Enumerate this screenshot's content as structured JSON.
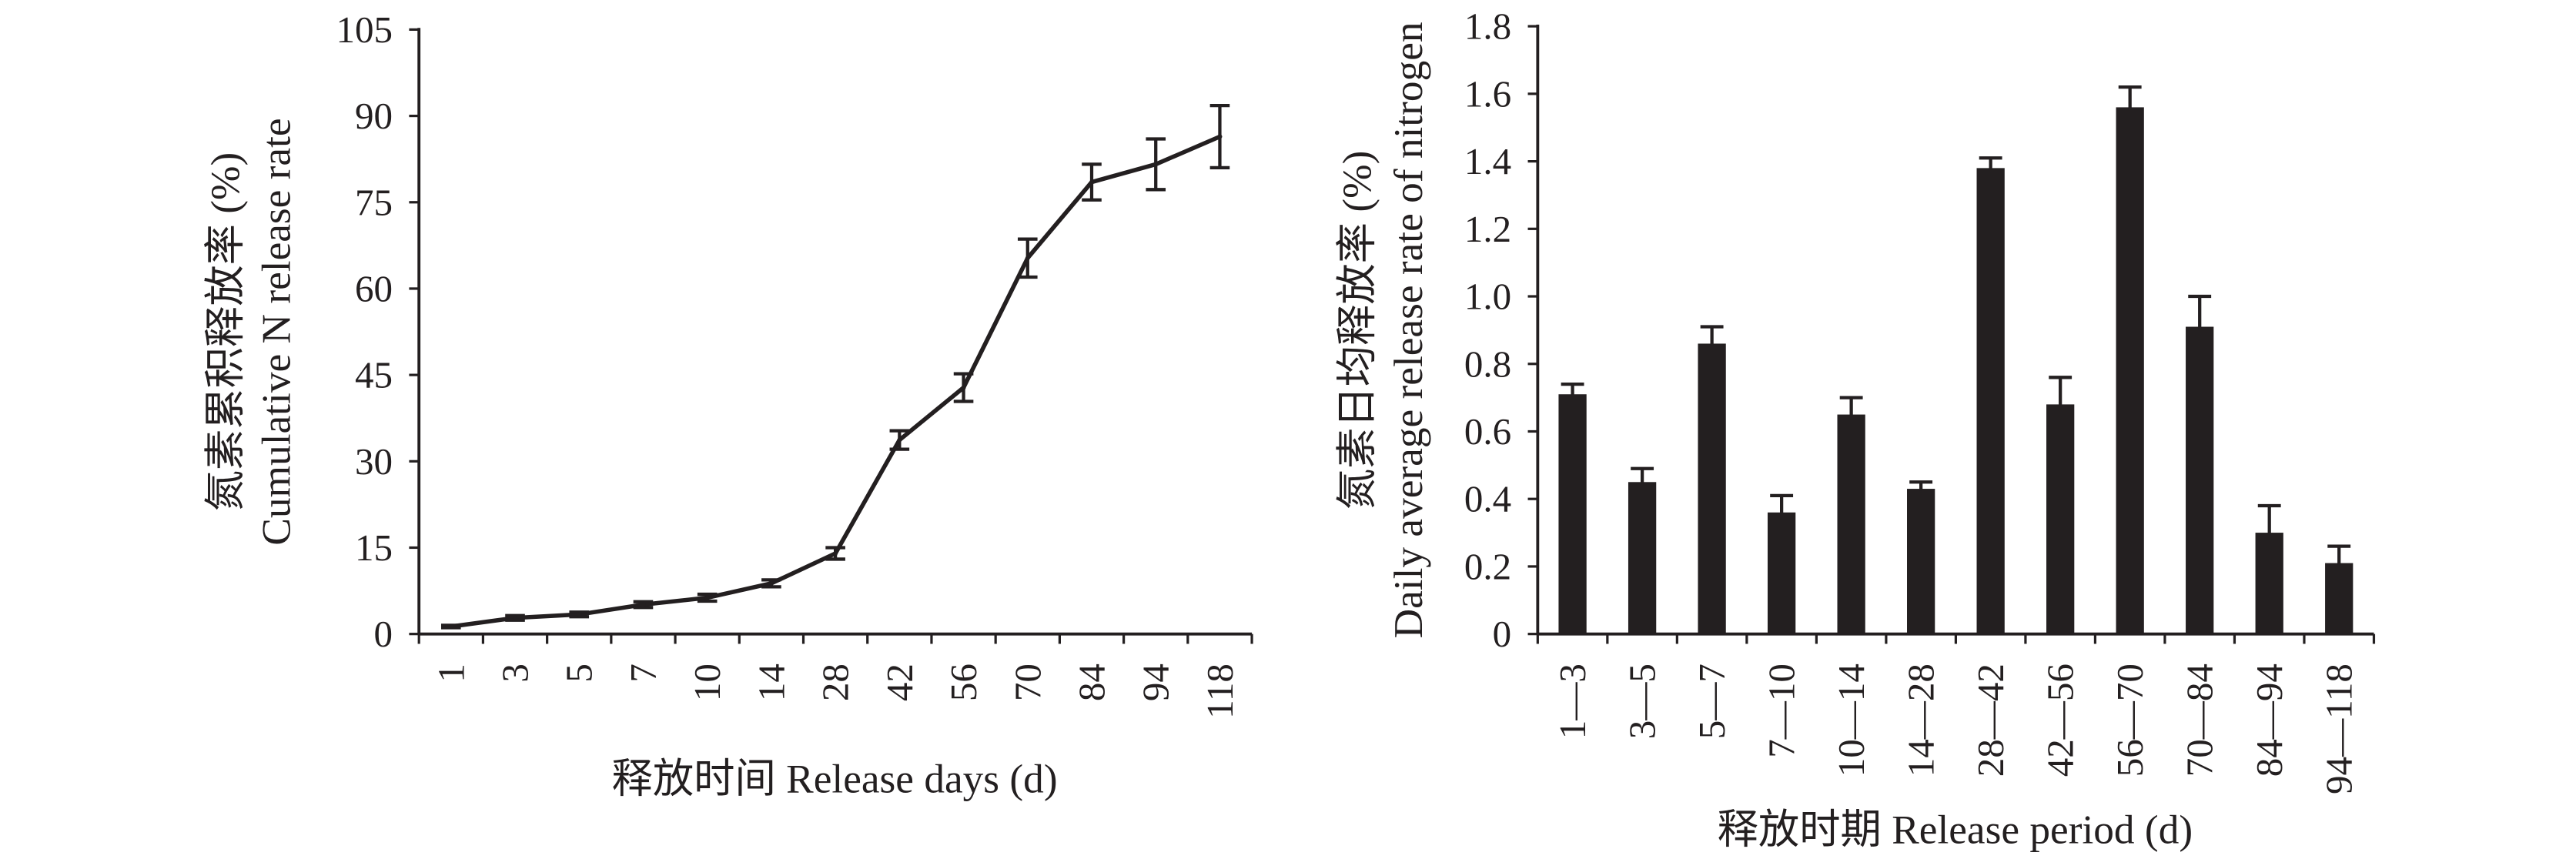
{
  "colors": {
    "ink": "#231f20",
    "background": "#ffffff"
  },
  "chart_data": [
    {
      "type": "line",
      "title": "",
      "xlabel": "释放时间 Release days (d)",
      "ylabel": [
        "氮素累积释放率 (%)",
        "Cumulative N release rate"
      ],
      "categories": [
        "1",
        "3",
        "5",
        "7",
        "10",
        "14",
        "28",
        "42",
        "56",
        "70",
        "84",
        "94",
        "118"
      ],
      "series": [
        {
          "values": [
            1.3,
            2.8,
            3.4,
            5.1,
            6.3,
            8.8,
            14.0,
            33.7,
            42.8,
            65.3,
            78.5,
            81.6,
            86.4
          ],
          "errors": [
            0.2,
            0.4,
            0.4,
            0.5,
            0.6,
            0.6,
            1.0,
            1.6,
            2.4,
            3.3,
            3.1,
            4.4,
            5.4
          ]
        }
      ],
      "ylim": [
        0,
        105
      ],
      "yticks": [
        "0",
        "15",
        "30",
        "45",
        "60",
        "75",
        "90",
        "105"
      ],
      "error_bars": "both",
      "grid": false,
      "legend": "none"
    },
    {
      "type": "bar",
      "title": "",
      "xlabel": "释放时期 Release period (d)",
      "ylabel": [
        "氮素日均释放率 (%)",
        "Daily average release rate of nitrogen"
      ],
      "categories": [
        "1—3",
        "3—5",
        "5—7",
        "7—10",
        "10—14",
        "14—28",
        "28—42",
        "42—56",
        "56—70",
        "70—84",
        "84—94",
        "94—118"
      ],
      "series": [
        {
          "values": [
            0.71,
            0.45,
            0.86,
            0.36,
            0.65,
            0.43,
            1.38,
            0.68,
            1.56,
            0.91,
            0.3,
            0.21
          ],
          "errors": [
            0.03,
            0.04,
            0.05,
            0.05,
            0.05,
            0.02,
            0.03,
            0.08,
            0.06,
            0.09,
            0.08,
            0.05
          ]
        }
      ],
      "ylim": [
        0,
        1.8
      ],
      "yticks": [
        "0",
        "0.2",
        "0.4",
        "0.6",
        "0.8",
        "1.0",
        "1.2",
        "1.4",
        "1.6",
        "1.8"
      ],
      "error_bars": "upper",
      "grid": false,
      "legend": "none"
    }
  ]
}
